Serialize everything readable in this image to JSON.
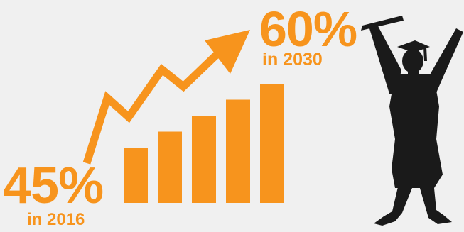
{
  "colors": {
    "accent": "#f7941d",
    "silhouette": "#1a1a1a",
    "background": "#f0f0f0"
  },
  "icons": {
    "trend": "up-arrow-icon",
    "figure": "graduate-silhouette-icon"
  },
  "start": {
    "value": "45%",
    "label": "in 2016"
  },
  "end": {
    "value": "60%",
    "label": "in 2030"
  },
  "chart_data": {
    "type": "bar",
    "categories": [
      "",
      "",
      "",
      "",
      ""
    ],
    "values": [
      45,
      48.75,
      52.5,
      56.25,
      60
    ],
    "ylim": [
      40,
      60
    ],
    "grid": false,
    "annotations": [
      {
        "text": "45%",
        "sub": "in 2016"
      },
      {
        "text": "60%",
        "sub": "in 2030"
      }
    ]
  }
}
